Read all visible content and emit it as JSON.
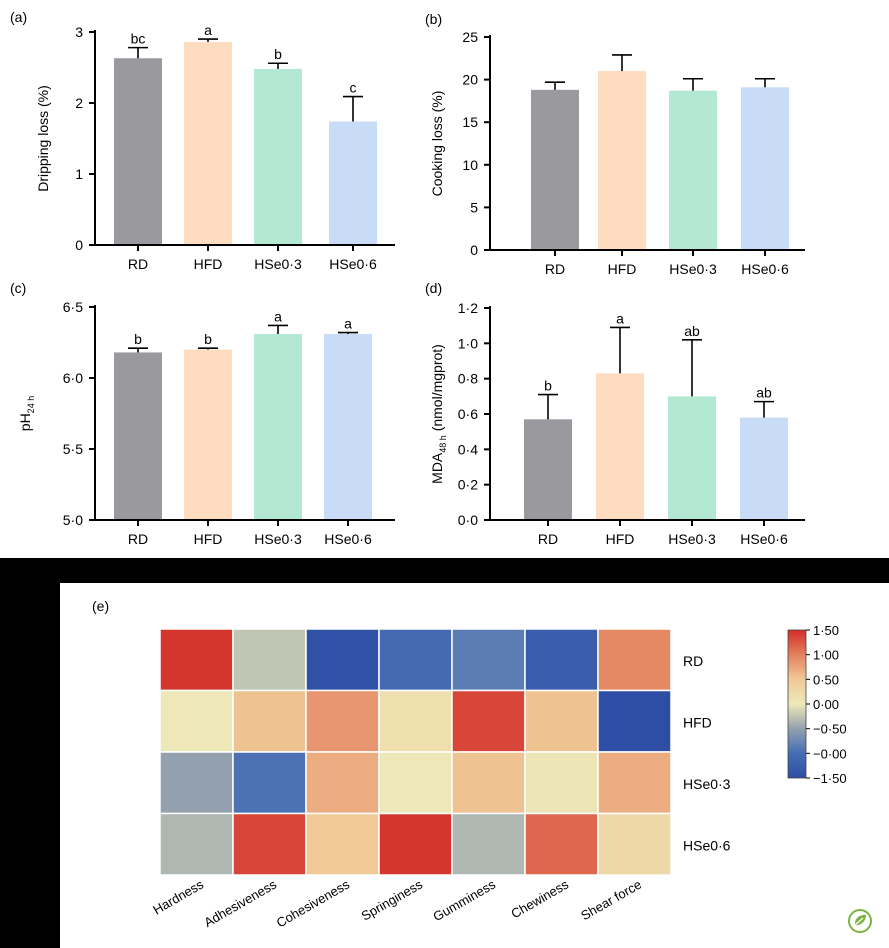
{
  "chart_data": [
    {
      "type": "bar",
      "panel_label": "(a)",
      "ylabel": "Dripping loss (%)",
      "ylabel_sub": "",
      "ylim": [
        0,
        3
      ],
      "yticks": [
        "0",
        "1",
        "2",
        "3"
      ],
      "categories": [
        "RD",
        "HFD",
        "HSe0·3",
        "HSe0·6"
      ],
      "values": [
        2.63,
        2.86,
        2.48,
        1.74
      ],
      "errors": [
        0.15,
        0.04,
        0.08,
        0.35
      ],
      "sig_letters": [
        "bc",
        "a",
        "b",
        "c"
      ],
      "colors": [
        "#9a999e",
        "#fddcc0",
        "#b3e8d2",
        "#c9dcf7"
      ]
    },
    {
      "type": "bar",
      "panel_label": "(b)",
      "ylabel": "Cooking loss (%)",
      "ylabel_sub": "",
      "ylim": [
        0,
        25
      ],
      "yticks": [
        "0",
        "5",
        "10",
        "15",
        "20",
        "25"
      ],
      "categories": [
        "RD",
        "HFD",
        "HSe0·3",
        "HSe0·6"
      ],
      "values": [
        18.8,
        21.0,
        18.7,
        19.1
      ],
      "errors": [
        0.9,
        1.9,
        1.4,
        1.0
      ],
      "sig_letters": [
        "",
        "",
        "",
        ""
      ],
      "colors": [
        "#9a999e",
        "#fddcc0",
        "#b3e8d2",
        "#c9dcf7"
      ]
    },
    {
      "type": "bar",
      "panel_label": "(c)",
      "ylabel": "pH",
      "ylabel_sub": "24 h",
      "ylim": [
        5.0,
        6.5
      ],
      "yticks": [
        "5·0",
        "5·5",
        "6·0",
        "6·5"
      ],
      "categories": [
        "RD",
        "HFD",
        "HSe0·3",
        "HSe0·6"
      ],
      "values": [
        6.18,
        6.2,
        6.31,
        6.31
      ],
      "errors": [
        0.03,
        0.01,
        0.06,
        0.01
      ],
      "sig_letters": [
        "b",
        "b",
        "a",
        "a"
      ],
      "colors": [
        "#9a999e",
        "#fddcc0",
        "#b3e8d2",
        "#c9dcf7"
      ]
    },
    {
      "type": "bar",
      "panel_label": "(d)",
      "ylabel": "MDA",
      "ylabel_sub": "48 h",
      "ylabel_rest": " (nmol/mgprot)",
      "ylim": [
        0,
        1.2
      ],
      "yticks": [
        "0·0",
        "0·2",
        "0·4",
        "0·6",
        "0·8",
        "1·0",
        "1·2"
      ],
      "categories": [
        "RD",
        "HFD",
        "HSe0·3",
        "HSe0·6"
      ],
      "values": [
        0.57,
        0.83,
        0.7,
        0.58
      ],
      "errors": [
        0.14,
        0.26,
        0.32,
        0.09
      ],
      "sig_letters": [
        "b",
        "a",
        "ab",
        "ab"
      ],
      "colors": [
        "#9a999e",
        "#fddcc0",
        "#b3e8d2",
        "#c9dcf7"
      ]
    },
    {
      "type": "heatmap",
      "panel_label": "(e)",
      "columns": [
        "Hardness",
        "Adhesiveness",
        "Cohesiveness",
        "Springiness",
        "Gumminess",
        "Chewiness",
        "Shear force"
      ],
      "rows": [
        "RD",
        "HFD",
        "HSe0·3",
        "HSe0·6"
      ],
      "values": [
        [
          1.45,
          -0.25,
          -1.45,
          -1.05,
          -0.85,
          -1.25,
          0.95
        ],
        [
          0.0,
          0.55,
          0.85,
          0.15,
          1.35,
          0.55,
          -1.5
        ],
        [
          -0.5,
          -0.95,
          0.7,
          0.0,
          0.55,
          0.05,
          0.7
        ],
        [
          -0.35,
          1.35,
          0.5,
          1.45,
          -0.35,
          1.15,
          0.25
        ]
      ],
      "colorbar_ticks": [
        "1·50",
        "1·00",
        "0·50",
        "0·00",
        "−0·50",
        "−0·00",
        "−1·50"
      ],
      "vmin": -1.5,
      "vmax": 1.5
    }
  ],
  "logo": {
    "name": "leaf-logo"
  }
}
